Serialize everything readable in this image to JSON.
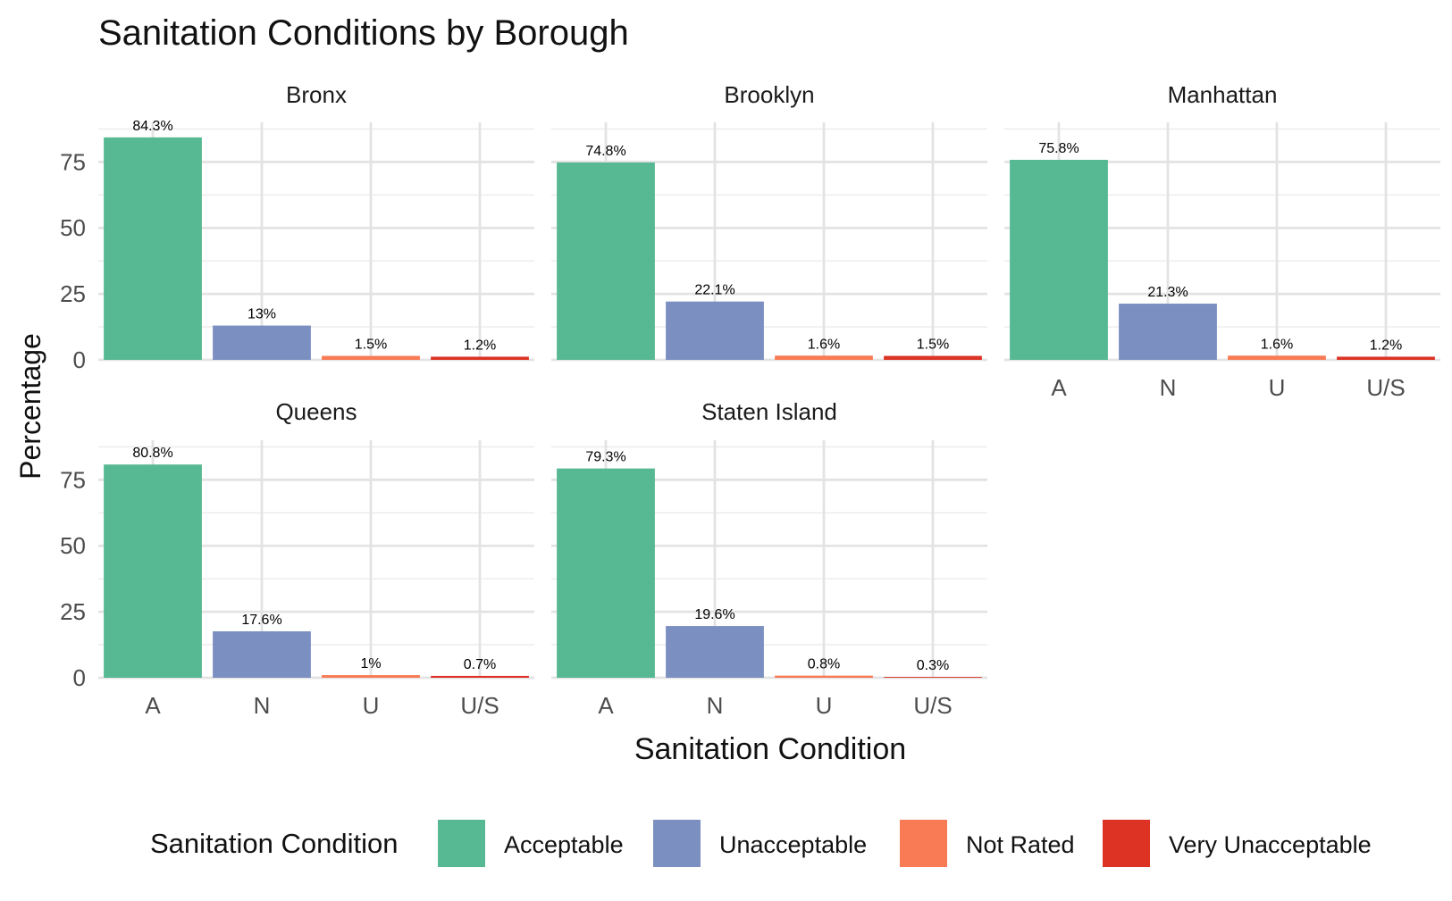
{
  "chart_data": {
    "type": "bar",
    "title": "Sanitation Conditions by Borough",
    "xlabel": "Sanitation Condition",
    "ylabel": "Percentage",
    "ylim": [
      0,
      90
    ],
    "yticks": [
      0,
      25,
      50,
      75
    ],
    "grid": true,
    "categories": [
      "A",
      "N",
      "U",
      "U/S"
    ],
    "legend": {
      "title": "Sanitation Condition",
      "position": "bottom",
      "entries": [
        {
          "label": "Acceptable",
          "color": "#57b993"
        },
        {
          "label": "Unacceptable",
          "color": "#7b8fc0"
        },
        {
          "label": "Not Rated",
          "color": "#f97b55"
        },
        {
          "label": "Very Unacceptable",
          "color": "#dc3325"
        }
      ]
    },
    "panels": [
      {
        "name": "Bronx",
        "values": [
          84.3,
          13,
          1.5,
          1.2
        ],
        "labels": [
          "84.3%",
          "13%",
          "1.5%",
          "1.2%"
        ]
      },
      {
        "name": "Brooklyn",
        "values": [
          74.8,
          22.1,
          1.6,
          1.5
        ],
        "labels": [
          "74.8%",
          "22.1%",
          "1.6%",
          "1.5%"
        ]
      },
      {
        "name": "Manhattan",
        "values": [
          75.8,
          21.3,
          1.6,
          1.2
        ],
        "labels": [
          "75.8%",
          "21.3%",
          "1.6%",
          "1.2%"
        ]
      },
      {
        "name": "Queens",
        "values": [
          80.8,
          17.6,
          1,
          0.7
        ],
        "labels": [
          "80.8%",
          "17.6%",
          "1%",
          "0.7%"
        ]
      },
      {
        "name": "Staten Island",
        "values": [
          79.3,
          19.6,
          0.8,
          0.3
        ],
        "labels": [
          "79.3%",
          "19.6%",
          "0.8%",
          "0.3%"
        ]
      }
    ]
  }
}
